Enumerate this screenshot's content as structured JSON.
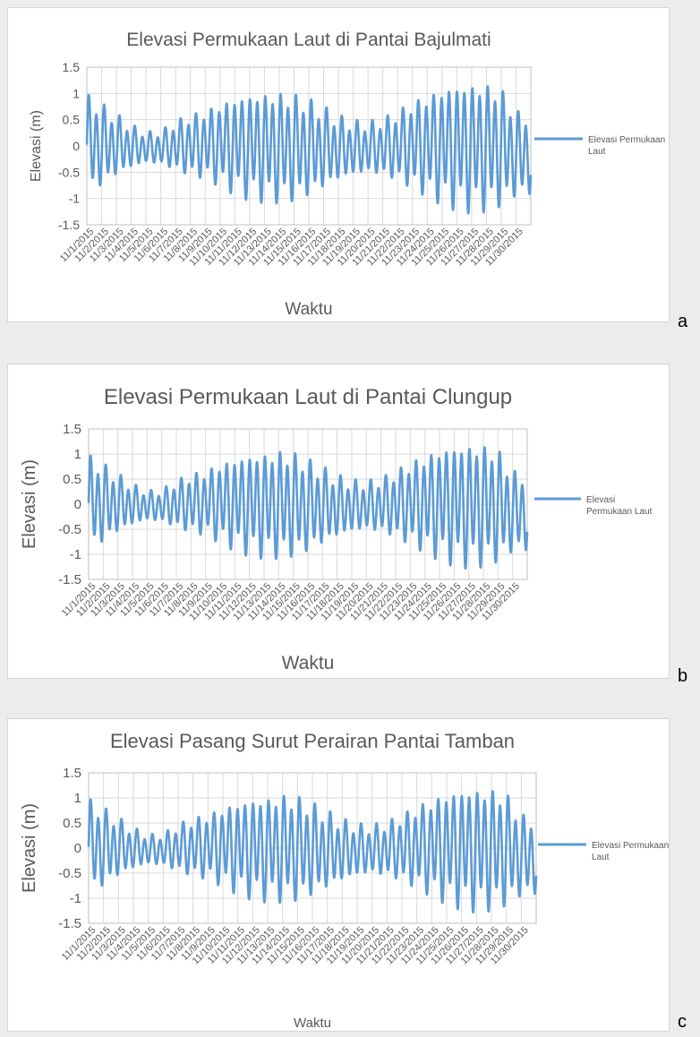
{
  "colors": {
    "series": "#5b9bd5",
    "grid": "#d9d9d9",
    "axis": "#bfbfbf",
    "text": "#595959"
  },
  "chart_data": [
    {
      "type": "line",
      "panel_letter": "a",
      "title": "Elevasi Permukaan Laut di Pantai Bajulmati",
      "xlabel": "Waktu",
      "ylabel": "Elevasi (m)",
      "ylim": [
        -1.5,
        1.5
      ],
      "yticks": [
        "1.5",
        "1",
        "0.5",
        "0",
        "-0.5",
        "-1",
        "-1.5"
      ],
      "x_range": [
        "11/1/2015",
        "11/30/2015"
      ],
      "categories": [
        "11/1/2015",
        "11/2/2015",
        "11/3/2015",
        "11/4/2015",
        "11/5/2015",
        "11/6/2015",
        "11/7/2015",
        "11/8/2015",
        "11/9/2015",
        "11/10/2015",
        "11/11/2015",
        "11/12/2015",
        "11/13/2015",
        "11/14/2015",
        "11/15/2015",
        "11/16/2015",
        "11/17/2015",
        "11/18/2015",
        "11/19/2015",
        "11/20/2015",
        "11/21/2015",
        "11/22/2015",
        "11/23/2015",
        "11/24/2015",
        "11/25/2015",
        "11/26/2015",
        "11/27/2015",
        "11/28/2015",
        "11/29/2015",
        "11/30/2015"
      ],
      "daily_max": [
        1.05,
        0.85,
        0.63,
        0.42,
        0.28,
        0.3,
        0.5,
        0.63,
        0.72,
        0.88,
        1.0,
        1.08,
        1.1,
        1.1,
        1.05,
        0.95,
        0.78,
        0.6,
        0.5,
        0.48,
        0.55,
        0.7,
        0.9,
        1.05,
        1.2,
        1.28,
        1.3,
        1.28,
        1.18,
        0.7
      ],
      "daily_min": [
        -1.0,
        -0.8,
        -0.6,
        -0.45,
        -0.35,
        -0.38,
        -0.5,
        -0.6,
        -0.65,
        -0.8,
        -0.95,
        -1.05,
        -1.1,
        -1.12,
        -1.1,
        -1.0,
        -0.85,
        -0.7,
        -0.6,
        -0.55,
        -0.6,
        -0.7,
        -0.85,
        -1.0,
        -1.15,
        -1.25,
        -1.3,
        -1.28,
        -1.2,
        -1.0
      ],
      "series": [
        {
          "name": "Elevasi Permukaan Laut"
        }
      ],
      "legend_lines": [
        "Elevasi Permukaan",
        "Laut"
      ],
      "legend_position": "right",
      "grid": true
    },
    {
      "type": "line",
      "panel_letter": "b",
      "title": "Elevasi Permukaan Laut di Pantai Clungup",
      "xlabel": "Waktu",
      "ylabel": "Elevasi (m)",
      "ylim": [
        -1.5,
        1.5
      ],
      "yticks": [
        "1.5",
        "1",
        "0.5",
        "0",
        "-0.5",
        "-1",
        "-1.5"
      ],
      "x_range": [
        "11/1/2015",
        "11/30/2015"
      ],
      "categories": [
        "11/1/2015",
        "11/2/2015",
        "11/3/2015",
        "11/4/2015",
        "11/5/2015",
        "11/6/2015",
        "11/7/2015",
        "11/8/2015",
        "11/9/2015",
        "11/10/2015",
        "11/11/2015",
        "11/12/2015",
        "11/13/2015",
        "11/14/2015",
        "11/15/2015",
        "11/16/2015",
        "11/17/2015",
        "11/18/2015",
        "11/19/2015",
        "11/20/2015",
        "11/21/2015",
        "11/22/2015",
        "11/23/2015",
        "11/24/2015",
        "11/25/2015",
        "11/26/2015",
        "11/27/2015",
        "11/28/2015",
        "11/29/2015",
        "11/30/2015"
      ],
      "daily_max": [
        1.05,
        0.85,
        0.63,
        0.42,
        0.28,
        0.3,
        0.5,
        0.63,
        0.72,
        0.88,
        1.0,
        1.08,
        1.1,
        1.15,
        1.1,
        0.95,
        0.78,
        0.6,
        0.5,
        0.48,
        0.55,
        0.7,
        0.9,
        1.05,
        1.2,
        1.28,
        1.3,
        1.28,
        1.18,
        0.7
      ],
      "daily_min": [
        -1.0,
        -0.8,
        -0.6,
        -0.45,
        -0.35,
        -0.38,
        -0.5,
        -0.6,
        -0.65,
        -0.8,
        -0.95,
        -1.05,
        -1.1,
        -1.12,
        -1.1,
        -1.0,
        -0.85,
        -0.7,
        -0.6,
        -0.55,
        -0.6,
        -0.7,
        -0.85,
        -1.0,
        -1.15,
        -1.25,
        -1.3,
        -1.28,
        -1.2,
        -1.0
      ],
      "series": [
        {
          "name": "Elevasi Permukaan Laut"
        }
      ],
      "legend_lines": [
        "Elevasi",
        "Permukaan Laut"
      ],
      "legend_position": "right",
      "grid": true
    },
    {
      "type": "line",
      "panel_letter": "c",
      "title": "Elevasi Pasang Surut Perairan Pantai Tamban",
      "xlabel": "Waktu",
      "ylabel": "Elevasi (m)",
      "ylim": [
        -1.5,
        1.5
      ],
      "yticks": [
        "1.5",
        "1",
        "0.5",
        "0",
        "-0.5",
        "-1",
        "-1.5"
      ],
      "x_range": [
        "11/1/2015",
        "11/30/2015"
      ],
      "categories": [
        "11/1/2015",
        "11/2/2015",
        "11/3/2015",
        "11/4/2015",
        "11/5/2015",
        "11/6/2015",
        "11/7/2015",
        "11/8/2015",
        "11/9/2015",
        "11/10/2015",
        "11/11/2015",
        "11/12/2015",
        "11/13/2015",
        "11/14/2015",
        "11/15/2015",
        "11/16/2015",
        "11/17/2015",
        "11/18/2015",
        "11/19/2015",
        "11/20/2015",
        "11/21/2015",
        "11/22/2015",
        "11/23/2015",
        "11/24/2015",
        "11/25/2015",
        "11/26/2015",
        "11/27/2015",
        "11/28/2015",
        "11/29/2015",
        "11/30/2015"
      ],
      "daily_max": [
        1.05,
        0.85,
        0.63,
        0.42,
        0.28,
        0.3,
        0.5,
        0.63,
        0.72,
        0.88,
        1.0,
        1.08,
        1.1,
        1.15,
        1.1,
        0.95,
        0.78,
        0.6,
        0.5,
        0.48,
        0.55,
        0.7,
        0.9,
        1.05,
        1.2,
        1.28,
        1.3,
        1.28,
        1.18,
        0.7
      ],
      "daily_min": [
        -1.0,
        -0.8,
        -0.6,
        -0.45,
        -0.35,
        -0.38,
        -0.5,
        -0.6,
        -0.65,
        -0.8,
        -0.95,
        -1.05,
        -1.1,
        -1.12,
        -1.1,
        -1.0,
        -0.85,
        -0.7,
        -0.6,
        -0.55,
        -0.6,
        -0.7,
        -0.85,
        -1.0,
        -1.15,
        -1.25,
        -1.3,
        -1.28,
        -1.2,
        -1.0
      ],
      "series": [
        {
          "name": "Elevasi Permukaan Laut"
        }
      ],
      "legend_lines": [
        "Elevasi Permukaan",
        "Laut"
      ],
      "legend_position": "right",
      "grid": true
    }
  ]
}
